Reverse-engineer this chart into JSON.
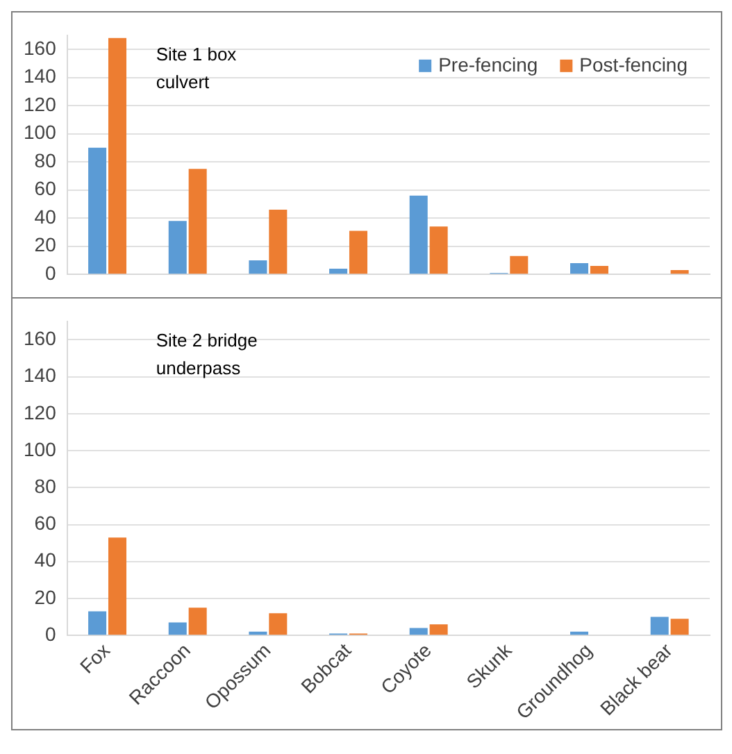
{
  "chart_data": [
    {
      "type": "bar",
      "categories": [
        null,
        null,
        null,
        null,
        null,
        null,
        null,
        null
      ],
      "series": [
        {
          "name": "Pre-fencing",
          "color": "#5b9bd5",
          "values": [
            90,
            38,
            10,
            4,
            56,
            1,
            8,
            0
          ]
        },
        {
          "name": "Post-fencing",
          "color": "#ed7d31",
          "values": [
            168,
            75,
            46,
            31,
            34,
            13,
            6,
            3
          ]
        }
      ],
      "ylim": [
        0,
        170
      ],
      "yticks": [
        0,
        20,
        40,
        60,
        80,
        100,
        120,
        140,
        160
      ],
      "grid": "y",
      "legend": "top right",
      "tick_labels": "y",
      "annotations": [
        "Site 1 box culvert"
      ]
    },
    {
      "type": "bar",
      "categories": [
        "Fox",
        "Raccoon",
        "Opossum",
        "Bobcat",
        "Coyote",
        "Skunk",
        "Groundhog",
        "Black bear"
      ],
      "series": [
        {
          "color": "#5b9bd5",
          "values": [
            13,
            7,
            2,
            1,
            4,
            0,
            2,
            10
          ]
        },
        {
          "color": "#ed7d31",
          "values": [
            53,
            15,
            12,
            1,
            6,
            0,
            0,
            9
          ]
        }
      ],
      "ylim": [
        0,
        170
      ],
      "yticks": [
        0,
        20,
        40,
        60,
        80,
        100,
        120,
        140,
        160
      ],
      "grid": "y",
      "legend": false,
      "annotations": [
        "Site 2 bridge underpass"
      ]
    }
  ]
}
